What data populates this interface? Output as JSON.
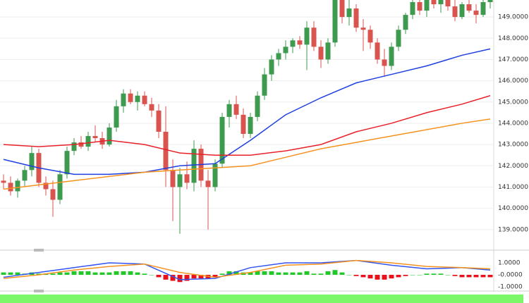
{
  "chart_data": [
    {
      "type": "candlestick",
      "up_color": "#3d9a4e",
      "down_color": "#d9534f",
      "grid": true,
      "ylim": [
        138.13,
        149.8
      ],
      "yticks": [
        {
          "value": 139,
          "label": "139.0000"
        },
        {
          "value": 140,
          "label": "140.0000"
        },
        {
          "value": 141,
          "label": "141.0000"
        },
        {
          "value": 142,
          "label": "142.0000"
        },
        {
          "value": 143,
          "label": "143.0000"
        },
        {
          "value": 144,
          "label": "144.0000"
        },
        {
          "value": 145,
          "label": "145.0000"
        },
        {
          "value": 146,
          "label": "146.0000"
        },
        {
          "value": 147,
          "label": "147.0000"
        },
        {
          "value": 148,
          "label": "148.0000"
        },
        {
          "value": 149,
          "label": "149.0000"
        }
      ],
      "open": [
        141.3,
        141.2,
        140.8,
        141.3,
        141.8,
        142.6,
        141.2,
        140.9,
        140.4,
        141.6,
        142.7,
        143.1,
        142.9,
        143.4,
        143.3,
        143.0,
        143.8,
        144.8,
        145.4,
        145.0,
        145.3,
        144.9,
        144.6,
        143.6,
        141.8,
        141.0,
        141.6,
        141.2,
        142.8,
        141.3,
        141.0,
        142.1,
        144.3,
        144.9,
        144.4,
        143.5,
        144.3,
        145.3,
        146.3,
        147.0,
        147.3,
        147.6,
        147.9,
        147.7,
        148.5,
        147.6,
        147.0,
        147.8,
        149.8,
        149.0,
        149.4,
        148.5,
        148.4,
        147.8,
        147.0,
        146.7,
        147.6,
        148.4,
        149.1,
        149.7,
        149.3,
        149.8,
        149.6,
        149.8,
        149.5,
        149.0,
        149.6,
        149.3,
        149.1,
        149.7
      ],
      "high": [
        141.6,
        141.5,
        141.4,
        142.0,
        142.9,
        142.8,
        141.5,
        141.3,
        141.8,
        142.9,
        143.3,
        143.4,
        143.6,
        143.9,
        143.6,
        144.0,
        145.1,
        145.6,
        145.6,
        145.5,
        145.5,
        145.2,
        144.9,
        144.8,
        142.3,
        141.9,
        142.2,
        143.2,
        143.0,
        141.8,
        142.3,
        144.5,
        145.1,
        145.3,
        144.7,
        144.5,
        145.5,
        146.6,
        147.2,
        147.5,
        147.9,
        148.0,
        148.1,
        148.8,
        148.8,
        147.9,
        148.0,
        149.9,
        149.9,
        149.9,
        149.6,
        148.9,
        148.6,
        148.0,
        147.5,
        147.8,
        148.6,
        149.2,
        149.9,
        149.9,
        149.9,
        149.9,
        149.9,
        149.9,
        149.8,
        149.7,
        149.8,
        149.6,
        149.8,
        149.9
      ],
      "low": [
        140.9,
        140.6,
        140.5,
        141.0,
        141.5,
        141.0,
        140.6,
        139.6,
        140.2,
        141.4,
        142.5,
        142.8,
        142.7,
        143.1,
        142.8,
        142.9,
        143.6,
        144.5,
        144.9,
        144.6,
        144.8,
        144.3,
        143.3,
        141.0,
        139.4,
        138.8,
        140.9,
        140.8,
        141.0,
        139.0,
        140.8,
        141.9,
        143.8,
        144.2,
        143.3,
        143.3,
        144.1,
        145.1,
        146.0,
        146.7,
        147.0,
        147.3,
        147.5,
        146.5,
        147.4,
        146.6,
        146.8,
        147.6,
        148.7,
        148.6,
        148.3,
        147.4,
        147.5,
        146.8,
        146.2,
        146.5,
        147.4,
        148.2,
        148.9,
        149.1,
        149.0,
        149.4,
        149.2,
        149.3,
        148.8,
        148.9,
        149.2,
        148.7,
        149.0,
        149.4
      ],
      "close": [
        141.2,
        140.8,
        141.3,
        141.8,
        142.6,
        141.2,
        140.9,
        140.4,
        141.6,
        142.7,
        143.1,
        142.9,
        143.4,
        143.3,
        143.0,
        143.8,
        144.8,
        145.4,
        145.0,
        145.3,
        144.9,
        144.6,
        143.6,
        141.8,
        141.0,
        141.6,
        141.2,
        142.8,
        141.3,
        141.0,
        142.1,
        144.3,
        144.9,
        144.4,
        143.5,
        144.3,
        145.3,
        146.3,
        147.0,
        147.3,
        147.6,
        147.9,
        147.7,
        148.5,
        147.6,
        147.0,
        147.8,
        149.8,
        149.0,
        149.4,
        148.5,
        148.4,
        147.8,
        147.0,
        146.7,
        147.6,
        148.4,
        149.1,
        149.7,
        149.3,
        149.8,
        149.6,
        149.8,
        149.5,
        149.0,
        149.6,
        149.3,
        149.1,
        149.7,
        149.8
      ],
      "lines": [
        {
          "color": "#1f3fe0",
          "x": [
            0,
            5,
            10,
            15,
            20,
            25,
            30,
            35,
            40,
            45,
            50,
            55,
            60,
            65,
            69
          ],
          "values": [
            142.3,
            141.9,
            141.6,
            141.6,
            141.7,
            142.0,
            142.1,
            143.2,
            144.4,
            145.2,
            145.9,
            146.3,
            146.7,
            147.2,
            147.5
          ]
        },
        {
          "color": "#e8202a",
          "x": [
            0,
            5,
            10,
            15,
            20,
            25,
            30,
            35,
            40,
            45,
            50,
            55,
            60,
            65,
            69
          ],
          "values": [
            143.0,
            142.9,
            143.0,
            143.2,
            143.0,
            142.6,
            142.5,
            142.5,
            142.7,
            143.0,
            143.6,
            144.0,
            144.5,
            144.9,
            145.3
          ]
        },
        {
          "color": "#f5921e",
          "x": [
            0,
            5,
            10,
            15,
            20,
            25,
            30,
            35,
            40,
            45,
            50,
            55,
            60,
            65,
            69
          ],
          "values": [
            140.9,
            141.1,
            141.3,
            141.5,
            141.7,
            141.8,
            141.9,
            142.0,
            142.4,
            142.8,
            143.1,
            143.4,
            143.7,
            144.0,
            144.2
          ]
        }
      ]
    },
    {
      "type": "macd",
      "pos_color": "#22c82a",
      "neg_color": "#e8101a",
      "ylim": [
        -1.29,
        1.88
      ],
      "yticks": [
        {
          "value": 1,
          "label": "1.0000"
        },
        {
          "value": 0,
          "label": "-0.0000"
        },
        {
          "value": -1,
          "label": "-1.0000"
        }
      ],
      "histogram": [
        0.2,
        0.2,
        0.2,
        0.1,
        0.2,
        0.1,
        0.1,
        0.1,
        0.2,
        0.2,
        0.3,
        0.3,
        0.3,
        0.2,
        0.2,
        0.2,
        0.3,
        0.3,
        0.3,
        0.2,
        0.1,
        0.0,
        -0.2,
        -0.4,
        -0.5,
        -0.6,
        -0.5,
        -0.3,
        -0.3,
        -0.3,
        -0.2,
        0.1,
        0.3,
        0.3,
        0.2,
        0.2,
        0.3,
        0.3,
        0.3,
        0.2,
        0.2,
        0.2,
        0.2,
        0.3,
        0.1,
        0.1,
        0.3,
        0.4,
        0.2,
        0.0,
        -0.1,
        -0.2,
        -0.3,
        -0.4,
        -0.4,
        -0.3,
        -0.2,
        -0.1,
        0.0,
        0.0,
        0.1,
        0.1,
        0.1,
        0.0,
        -0.1,
        -0.2,
        -0.2,
        -0.2,
        -0.2,
        -0.2
      ],
      "lines": [
        {
          "color": "#3355ee",
          "x": [
            0,
            5,
            10,
            15,
            20,
            25,
            30,
            35,
            40,
            45,
            50,
            55,
            60,
            65,
            69
          ],
          "values": [
            -0.2,
            0.2,
            0.6,
            1.0,
            0.9,
            -0.4,
            -0.3,
            0.6,
            1.0,
            1.0,
            1.2,
            0.8,
            0.5,
            0.6,
            0.4
          ]
        },
        {
          "color": "#f5921e",
          "x": [
            0,
            5,
            10,
            15,
            20,
            25,
            30,
            35,
            40,
            45,
            50,
            55,
            60,
            65,
            69
          ],
          "values": [
            -0.3,
            0.0,
            0.4,
            0.7,
            0.9,
            0.2,
            -0.2,
            0.2,
            0.8,
            0.9,
            1.2,
            1.0,
            0.7,
            0.6,
            0.5
          ]
        }
      ]
    }
  ]
}
